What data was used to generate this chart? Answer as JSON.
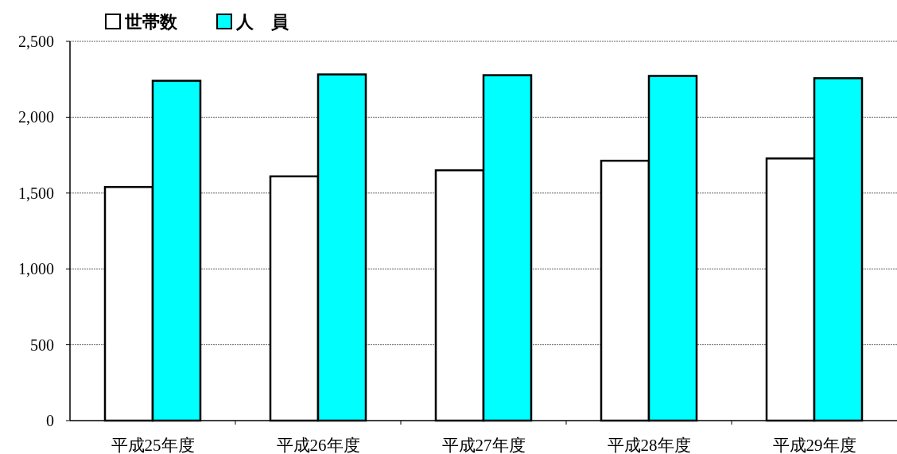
{
  "chart_data": {
    "type": "bar",
    "categories": [
      "平成25年度",
      "平成26年度",
      "平成27年度",
      "平成28年度",
      "平成29年度"
    ],
    "series": [
      {
        "name": "世帯数",
        "color": "#ffffff",
        "values": [
          1540,
          1610,
          1650,
          1713,
          1728
        ]
      },
      {
        "name": "人　員",
        "color": "#00ffff",
        "values": [
          2240,
          2282,
          2277,
          2272,
          2257
        ]
      }
    ],
    "ylim": [
      0,
      2500
    ],
    "yticks": [
      0,
      {
        "value": 500,
        "label": "500"
      },
      {
        "value": 1000,
        "label": "1,000"
      },
      {
        "value": 1500,
        "label": "1,500"
      },
      {
        "value": 2000,
        "label": "2,000"
      },
      {
        "value": 2500,
        "label": "2,500"
      }
    ],
    "grid": "y",
    "legend": "top left"
  }
}
